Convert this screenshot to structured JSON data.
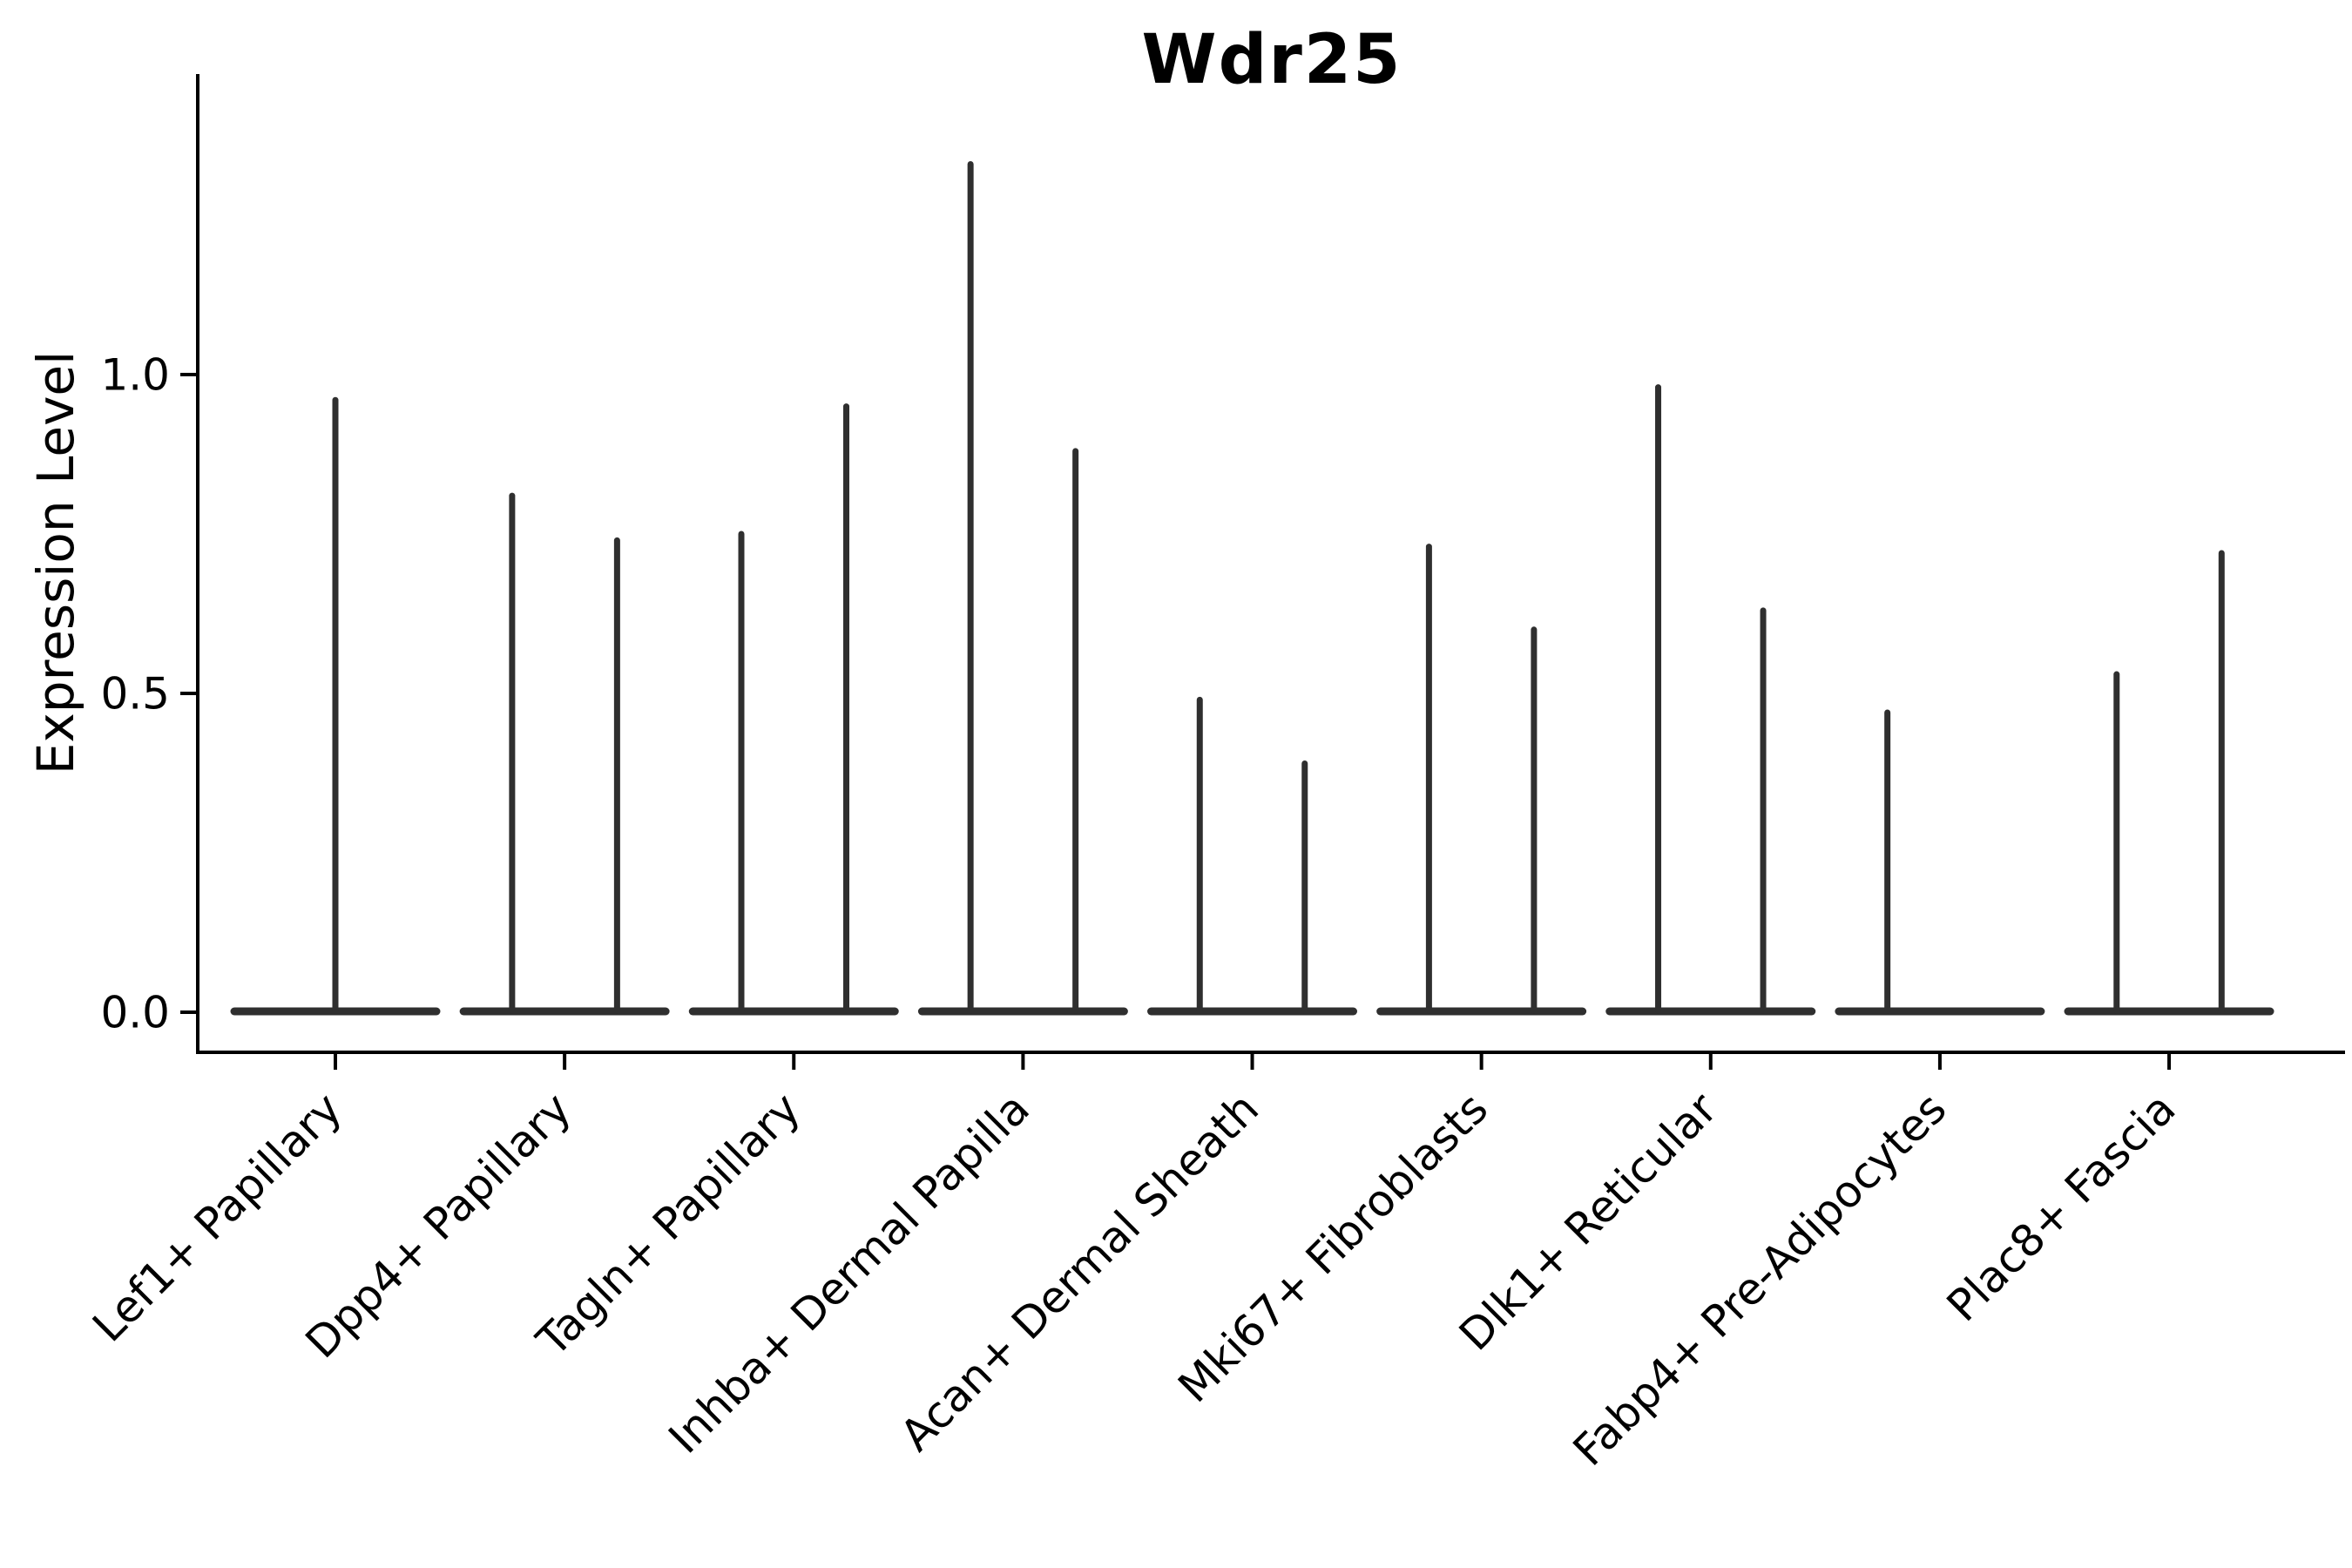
{
  "chart_data": {
    "type": "violin",
    "title": "Wdr25",
    "ylabel": "Expression Level",
    "xlabel": "",
    "grid": false,
    "legend": "none",
    "ylim": [
      0,
      1.47
    ],
    "yticks": [
      {
        "value": 0.0,
        "label": "0.0"
      },
      {
        "value": 0.5,
        "label": "0.5"
      },
      {
        "value": 1.0,
        "label": "1.0"
      }
    ],
    "categories": [
      "Lef1+ Papillary",
      "Dpp4+ Papillary",
      "Tagln+ Papillary",
      "Inhba+ Dermal Papilla",
      "Acan+ Dermal Sheath",
      "Mki67+ Fibroblasts",
      "Dlk1+ Reticular",
      "Fabp4+ Pre-Adipocytes",
      "Plac8+ Fascia"
    ],
    "violins": [
      {
        "category": "Lef1+ Papillary",
        "groups": [
          {
            "position": "center",
            "max_expression": 0.96
          }
        ]
      },
      {
        "category": "Dpp4+ Papillary",
        "groups": [
          {
            "position": "left",
            "max_expression": 0.81
          },
          {
            "position": "right",
            "max_expression": 0.74
          }
        ]
      },
      {
        "category": "Tagln+ Papillary",
        "groups": [
          {
            "position": "left",
            "max_expression": 0.75
          },
          {
            "position": "right",
            "max_expression": 0.95
          }
        ]
      },
      {
        "category": "Inhba+ Dermal Papilla",
        "groups": [
          {
            "position": "left",
            "max_expression": 1.33
          },
          {
            "position": "right",
            "max_expression": 0.88
          }
        ]
      },
      {
        "category": "Acan+ Dermal Sheath",
        "groups": [
          {
            "position": "left",
            "max_expression": 0.49
          },
          {
            "position": "right",
            "max_expression": 0.39
          }
        ]
      },
      {
        "category": "Mki67+ Fibroblasts",
        "groups": [
          {
            "position": "left",
            "max_expression": 0.73
          },
          {
            "position": "right",
            "max_expression": 0.6
          }
        ]
      },
      {
        "category": "Dlk1+ Reticular",
        "groups": [
          {
            "position": "left",
            "max_expression": 0.98
          },
          {
            "position": "right",
            "max_expression": 0.63
          }
        ]
      },
      {
        "category": "Fabp4+ Pre-Adipocytes",
        "groups": [
          {
            "position": "left",
            "max_expression": 0.47
          },
          {
            "position": "right",
            "max_expression": 0.0
          }
        ]
      },
      {
        "category": "Plac8+ Fascia",
        "groups": [
          {
            "position": "left",
            "max_expression": 0.53
          },
          {
            "position": "right",
            "max_expression": 0.72
          }
        ]
      }
    ],
    "colors": {
      "violin_stroke": "#2f2f2f",
      "axis": "#000000",
      "text": "#000000",
      "background": "#ffffff"
    }
  }
}
